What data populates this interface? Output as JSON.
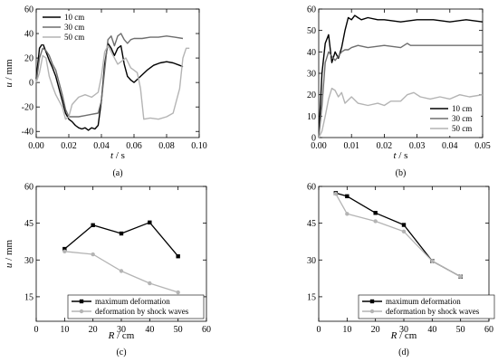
{
  "colors": {
    "black": "#000000",
    "dark_gray": "#6e6e6e",
    "light_gray": "#b4b4b4"
  },
  "chart_data": [
    {
      "panel": "(a)",
      "type": "line",
      "xlabel_var": "t",
      "xlabel_unit": " / s",
      "ylabel_var": "u",
      "ylabel_unit": " / mm",
      "xlim": [
        0,
        0.1
      ],
      "ylim": [
        -45,
        60
      ],
      "xticks": [
        0.0,
        0.02,
        0.04,
        0.06,
        0.08,
        0.1
      ],
      "xtick_labels": [
        "0.00",
        "0.02",
        "0.04",
        "0.06",
        "0.08",
        "0.10"
      ],
      "yticks": [
        -40,
        -20,
        0,
        20,
        40,
        60
      ],
      "ytick_labels": [
        "-40",
        "-20",
        "0",
        "20",
        "40",
        "60"
      ],
      "legend_position": "top-left",
      "series": [
        {
          "name": "10 cm",
          "color": "black",
          "x": [
            0,
            0.002,
            0.004,
            0.006,
            0.008,
            0.01,
            0.012,
            0.014,
            0.016,
            0.018,
            0.02,
            0.022,
            0.024,
            0.026,
            0.028,
            0.03,
            0.032,
            0.034,
            0.036,
            0.038,
            0.04,
            0.042,
            0.044,
            0.046,
            0.048,
            0.05,
            0.052,
            0.054,
            0.056,
            0.058,
            0.06,
            0.064,
            0.068,
            0.072,
            0.076,
            0.08,
            0.084,
            0.088,
            0.09
          ],
          "y": [
            3,
            28,
            32,
            25,
            18,
            12,
            5,
            -5,
            -15,
            -25,
            -30,
            -32,
            -35,
            -37,
            -38,
            -37,
            -39,
            -37,
            -38,
            -35,
            -15,
            15,
            32,
            28,
            22,
            28,
            30,
            15,
            5,
            2,
            0,
            5,
            10,
            14,
            16,
            17,
            16,
            14,
            13
          ]
        },
        {
          "name": "30 cm",
          "color": "dark_gray",
          "x": [
            0,
            0.002,
            0.004,
            0.006,
            0.008,
            0.01,
            0.012,
            0.014,
            0.016,
            0.018,
            0.02,
            0.022,
            0.026,
            0.03,
            0.034,
            0.038,
            0.04,
            0.042,
            0.044,
            0.046,
            0.048,
            0.05,
            0.052,
            0.054,
            0.056,
            0.058,
            0.06,
            0.065,
            0.07,
            0.075,
            0.08,
            0.085,
            0.09
          ],
          "y": [
            0,
            20,
            28,
            26,
            22,
            15,
            10,
            0,
            -10,
            -22,
            -28,
            -28,
            -28,
            -27,
            -26,
            -25,
            -15,
            10,
            35,
            38,
            30,
            38,
            40,
            35,
            32,
            35,
            36,
            36,
            37,
            37,
            38,
            37,
            36
          ]
        },
        {
          "name": "50 cm",
          "color": "light_gray",
          "x": [
            0,
            0.002,
            0.004,
            0.006,
            0.008,
            0.01,
            0.012,
            0.014,
            0.016,
            0.018,
            0.02,
            0.022,
            0.026,
            0.03,
            0.034,
            0.038,
            0.04,
            0.042,
            0.044,
            0.046,
            0.05,
            0.055,
            0.058,
            0.06,
            0.062,
            0.064,
            0.066,
            0.07,
            0.075,
            0.08,
            0.084,
            0.088,
            0.09,
            0.092,
            0.094
          ],
          "y": [
            0,
            8,
            22,
            20,
            5,
            -3,
            -10,
            -15,
            -20,
            -30,
            -28,
            -18,
            -12,
            -10,
            -12,
            -8,
            5,
            25,
            30,
            25,
            15,
            20,
            12,
            10,
            8,
            -5,
            -30,
            -29,
            -30,
            -28,
            -25,
            -5,
            20,
            28,
            28
          ]
        }
      ]
    },
    {
      "panel": "(b)",
      "type": "line",
      "xlabel_var": "t",
      "xlabel_unit": " / s",
      "ylabel_var": "",
      "ylabel_unit": "",
      "xlim": [
        0,
        0.05
      ],
      "ylim": [
        0,
        60
      ],
      "xticks": [
        0.0,
        0.01,
        0.02,
        0.03,
        0.04,
        0.05
      ],
      "xtick_labels": [
        "0.00",
        "0.01",
        "0.02",
        "0.03",
        "0.04",
        "0.05"
      ],
      "yticks": [
        0,
        10,
        20,
        30,
        40,
        50,
        60
      ],
      "ytick_labels": [
        "0",
        "10",
        "20",
        "30",
        "40",
        "50",
        "60"
      ],
      "legend_position": "bottom-right",
      "series": [
        {
          "name": "10 cm",
          "color": "black",
          "x": [
            0,
            0.001,
            0.002,
            0.003,
            0.004,
            0.005,
            0.006,
            0.007,
            0.008,
            0.009,
            0.01,
            0.011,
            0.012,
            0.013,
            0.015,
            0.018,
            0.02,
            0.025,
            0.03,
            0.035,
            0.04,
            0.045,
            0.05
          ],
          "y": [
            0,
            30,
            44,
            48,
            35,
            40,
            37,
            42,
            50,
            56,
            55,
            57,
            56,
            55,
            56,
            55,
            55,
            54,
            55,
            55,
            54,
            55,
            54
          ]
        },
        {
          "name": "30 cm",
          "color": "dark_gray",
          "x": [
            0,
            0.001,
            0.002,
            0.003,
            0.004,
            0.005,
            0.006,
            0.007,
            0.008,
            0.009,
            0.01,
            0.012,
            0.015,
            0.02,
            0.025,
            0.027,
            0.028,
            0.03,
            0.035,
            0.04,
            0.045,
            0.05
          ],
          "y": [
            0,
            15,
            35,
            40,
            38,
            36,
            38,
            40,
            41,
            41,
            42,
            43,
            42,
            43,
            42,
            44,
            43,
            43,
            43,
            43,
            43,
            43
          ]
        },
        {
          "name": "50 cm",
          "color": "light_gray",
          "x": [
            0,
            0.001,
            0.002,
            0.003,
            0.004,
            0.005,
            0.006,
            0.007,
            0.008,
            0.01,
            0.012,
            0.015,
            0.018,
            0.02,
            0.022,
            0.025,
            0.027,
            0.029,
            0.031,
            0.034,
            0.037,
            0.04,
            0.043,
            0.046,
            0.05
          ],
          "y": [
            0,
            3,
            10,
            18,
            23,
            22,
            19,
            21,
            16,
            19,
            16,
            15,
            16,
            15,
            17,
            17,
            20,
            21,
            19,
            18,
            19,
            18,
            20,
            19,
            20
          ]
        }
      ]
    },
    {
      "panel": "(c)",
      "type": "line",
      "xlabel_var": "R",
      "xlabel_unit": " / cm",
      "ylabel_var": "u",
      "ylabel_unit": " / mm",
      "xlim": [
        0,
        60
      ],
      "ylim": [
        5,
        60
      ],
      "xticks": [
        0,
        10,
        20,
        30,
        40,
        50,
        60
      ],
      "xtick_labels": [
        "0",
        "10",
        "20",
        "30",
        "40",
        "50",
        "60"
      ],
      "yticks": [
        15,
        30,
        45,
        60
      ],
      "ytick_labels": [
        "15",
        "30",
        "45",
        "60"
      ],
      "legend_position": "bottom-right",
      "series": [
        {
          "name": "maximum deformation",
          "color": "black",
          "marker": "square",
          "x": [
            10,
            20,
            30,
            40,
            50
          ],
          "y": [
            34.5,
            44.2,
            40.8,
            45.3,
            31.5
          ]
        },
        {
          "name": "deformation by shock waves",
          "color": "light_gray",
          "marker": "circle",
          "x": [
            10,
            20,
            30,
            40,
            50
          ],
          "y": [
            33.5,
            32.3,
            25.5,
            20.5,
            16.8
          ]
        }
      ]
    },
    {
      "panel": "(d)",
      "type": "line",
      "xlabel_var": "R",
      "xlabel_unit": " / cm",
      "ylabel_var": "",
      "ylabel_unit": "",
      "xlim": [
        0,
        60
      ],
      "ylim": [
        5,
        60
      ],
      "xticks": [
        0,
        10,
        20,
        30,
        40,
        50,
        60
      ],
      "xtick_labels": [
        "0",
        "10",
        "20",
        "30",
        "40",
        "50",
        "60"
      ],
      "yticks": [
        15,
        30,
        45,
        60
      ],
      "ytick_labels": [
        "15",
        "30",
        "45",
        "60"
      ],
      "legend_position": "bottom-left",
      "series": [
        {
          "name": "maximum deformation",
          "color": "black",
          "marker": "square",
          "x": [
            6,
            10,
            20,
            30,
            40,
            50
          ],
          "y": [
            57.3,
            56.0,
            49.2,
            44.3,
            29.6,
            23.2
          ]
        },
        {
          "name": "deformation by shock waves",
          "color": "light_gray",
          "marker": "circle",
          "x": [
            6,
            10,
            20,
            30,
            40,
            50
          ],
          "y": [
            57.0,
            48.8,
            45.8,
            41.6,
            29.6,
            23.2
          ]
        }
      ]
    }
  ]
}
